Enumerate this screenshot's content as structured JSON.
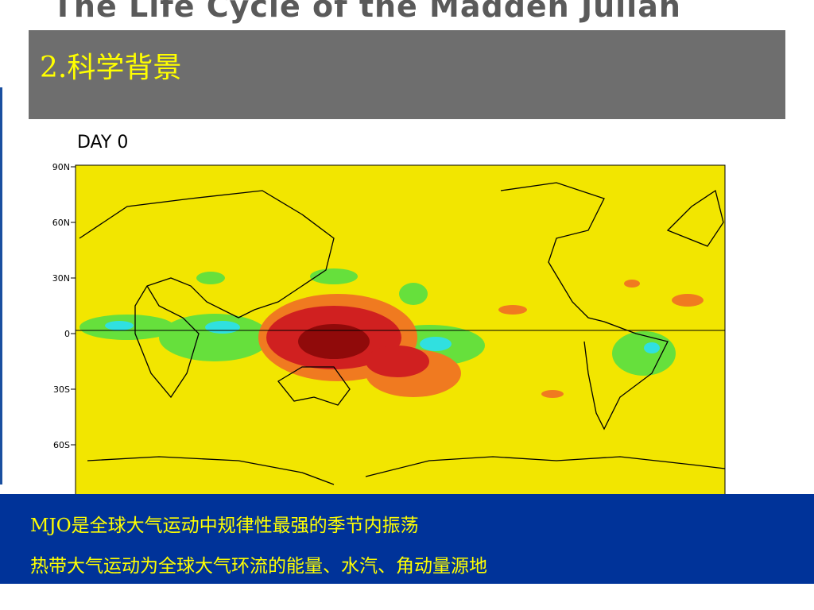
{
  "slide": {
    "title": "The Life Cycle of the Madden Julian",
    "header": "2.科学背景",
    "figure": {
      "title": "DAY 0",
      "lat_labels": [
        "90N",
        "60N",
        "30N",
        "0",
        "30S",
        "60S"
      ]
    },
    "bullets": [
      "MJO是全球大气运动中规律性最强的季节内振荡",
      "热带大气运动为全球大气环流的能量、水汽、角动量源地"
    ]
  }
}
